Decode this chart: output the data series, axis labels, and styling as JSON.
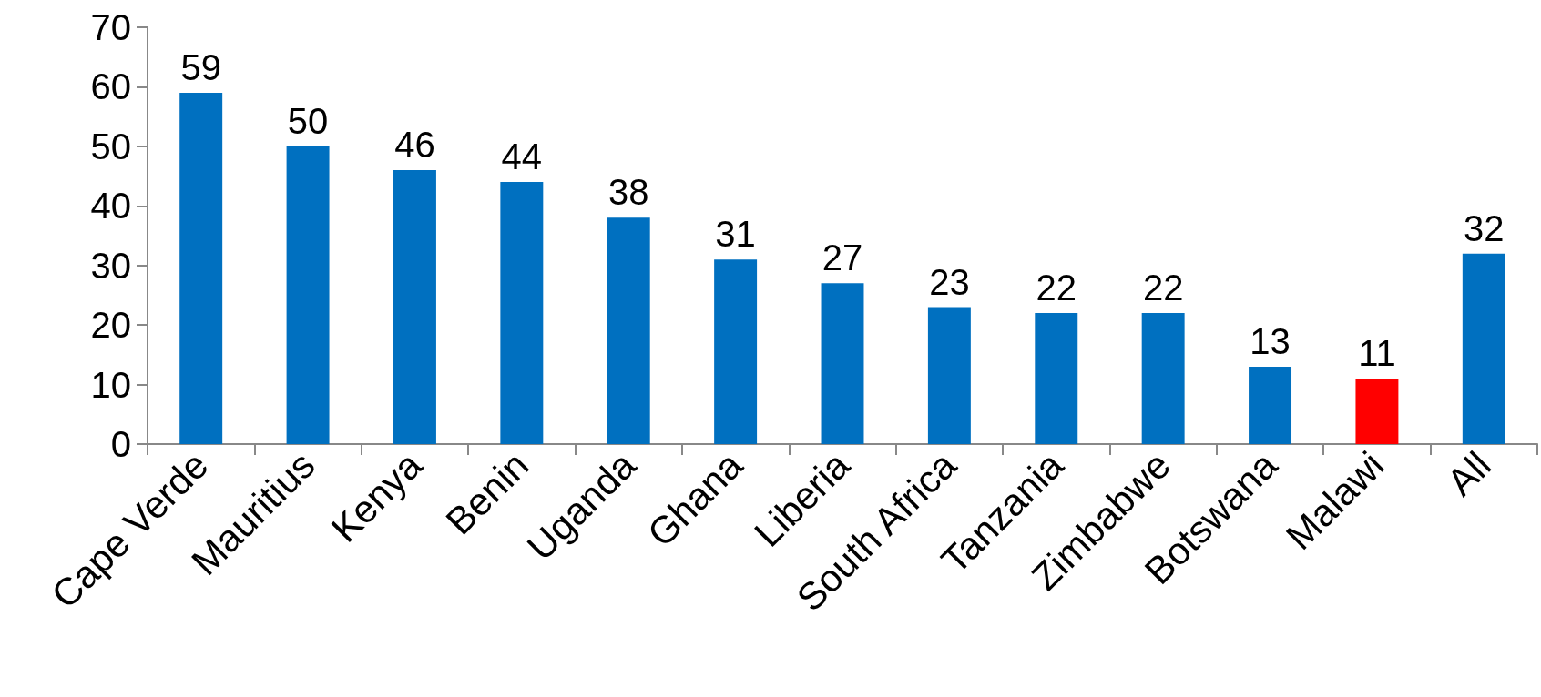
{
  "chart_data": {
    "type": "bar",
    "categories": [
      "Cape Verde",
      "Mauritius",
      "Kenya",
      "Benin",
      "Uganda",
      "Ghana",
      "Liberia",
      "South Africa",
      "Tanzania",
      "Zimbabwe",
      "Botswana",
      "Malawi",
      "All"
    ],
    "values": [
      59,
      50,
      46,
      44,
      38,
      31,
      27,
      23,
      22,
      22,
      13,
      11,
      32
    ],
    "colors": [
      "#0070c0",
      "#0070c0",
      "#0070c0",
      "#0070c0",
      "#0070c0",
      "#0070c0",
      "#0070c0",
      "#0070c0",
      "#0070c0",
      "#0070c0",
      "#0070c0",
      "#ff0000",
      "#0070c0"
    ],
    "ylim": [
      0,
      70
    ],
    "yticks": [
      0,
      10,
      20,
      30,
      40,
      50,
      60,
      70
    ],
    "grid": false,
    "data_labels": true
  }
}
